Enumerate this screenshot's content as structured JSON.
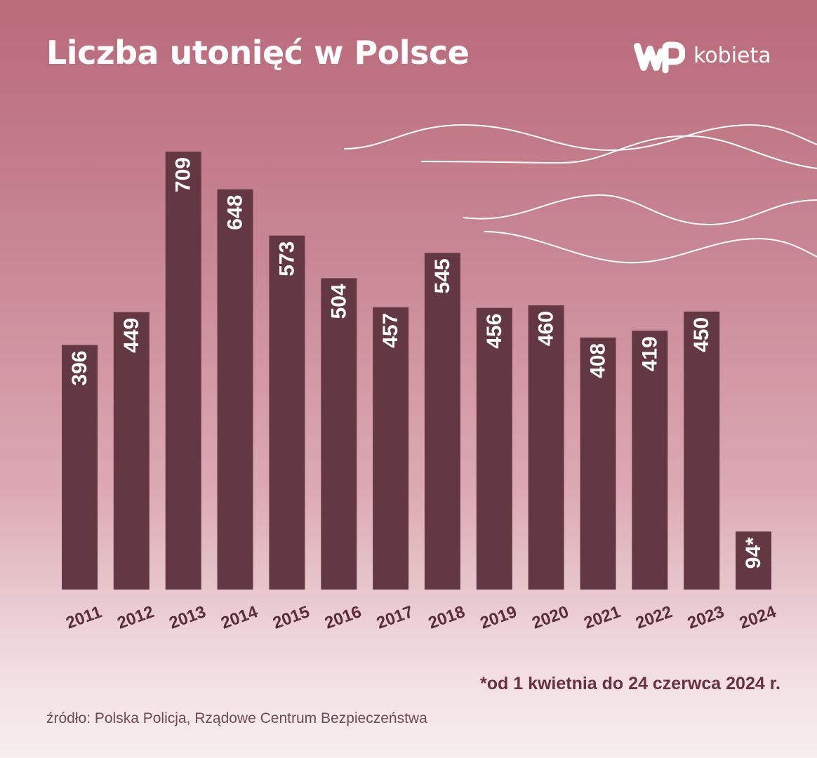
{
  "header": {
    "title": "Liczba utonięć w Polsce",
    "brand": "kobieta"
  },
  "colors": {
    "bar": "#633843",
    "title": "#ffffff",
    "axis_label": "#5a2e39",
    "note": "#6a3240"
  },
  "chart_data": {
    "type": "bar",
    "title": "Liczba utonięć w Polsce",
    "xlabel": "",
    "ylabel": "",
    "grid": false,
    "categories": [
      "2011",
      "2012",
      "2013",
      "2014",
      "2015",
      "2016",
      "2017",
      "2018",
      "2019",
      "2020",
      "2021",
      "2022",
      "2023",
      "2024"
    ],
    "values": [
      396,
      449,
      709,
      648,
      573,
      504,
      457,
      545,
      456,
      460,
      408,
      419,
      450,
      94
    ],
    "value_labels": [
      "396",
      "449",
      "709",
      "648",
      "573",
      "504",
      "457",
      "545",
      "456",
      "460",
      "408",
      "419",
      "450",
      "94*"
    ],
    "ylim": [
      0,
      720
    ]
  },
  "footnote": "*od 1 kwietnia do 24 czerwca 2024 r.",
  "source": "źródło: Polska Policja, Rządowe Centrum Bezpieczeństwa"
}
